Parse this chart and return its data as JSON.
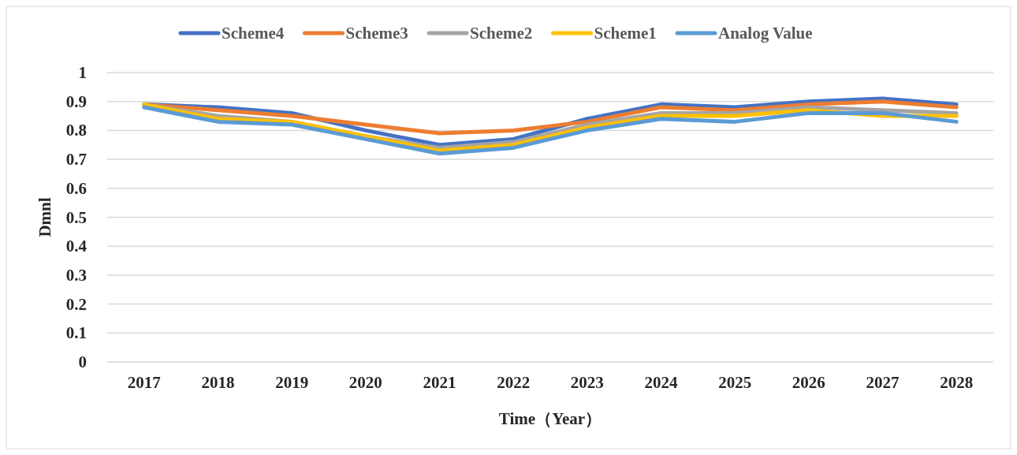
{
  "chart_data": {
    "type": "line",
    "xlabel": "Time（Year）",
    "ylabel": "Dmnl",
    "categories": [
      "2017",
      "2018",
      "2019",
      "2020",
      "2021",
      "2022",
      "2023",
      "2024",
      "2025",
      "2026",
      "2027",
      "2028"
    ],
    "ylim": [
      0,
      1
    ],
    "yticks": [
      0,
      0.1,
      0.2,
      0.3,
      0.4,
      0.5,
      0.6,
      0.7,
      0.8,
      0.9,
      1
    ],
    "grid": "y",
    "legend": "top",
    "marker": "none",
    "line_style": "solid",
    "series": [
      {
        "name": "Scheme4",
        "color": "#4472c4",
        "values": [
          0.89,
          0.88,
          0.86,
          0.8,
          0.75,
          0.77,
          0.84,
          0.89,
          0.88,
          0.9,
          0.91,
          0.89
        ]
      },
      {
        "name": "Scheme3",
        "color": "#ed7d31",
        "values": [
          0.89,
          0.87,
          0.85,
          0.82,
          0.79,
          0.8,
          0.83,
          0.88,
          0.87,
          0.89,
          0.9,
          0.88
        ]
      },
      {
        "name": "Scheme2",
        "color": "#a5a5a5",
        "values": [
          0.89,
          0.85,
          0.83,
          0.78,
          0.74,
          0.76,
          0.82,
          0.86,
          0.86,
          0.88,
          0.87,
          0.86
        ]
      },
      {
        "name": "Scheme1",
        "color": "#ffc000",
        "values": [
          0.89,
          0.84,
          0.83,
          0.78,
          0.73,
          0.75,
          0.81,
          0.85,
          0.85,
          0.87,
          0.85,
          0.85
        ]
      },
      {
        "name": "Analog Value",
        "color": "#5b9bd5",
        "values": [
          0.88,
          0.83,
          0.82,
          0.77,
          0.72,
          0.74,
          0.8,
          0.84,
          0.83,
          0.86,
          0.86,
          0.83
        ]
      }
    ]
  }
}
